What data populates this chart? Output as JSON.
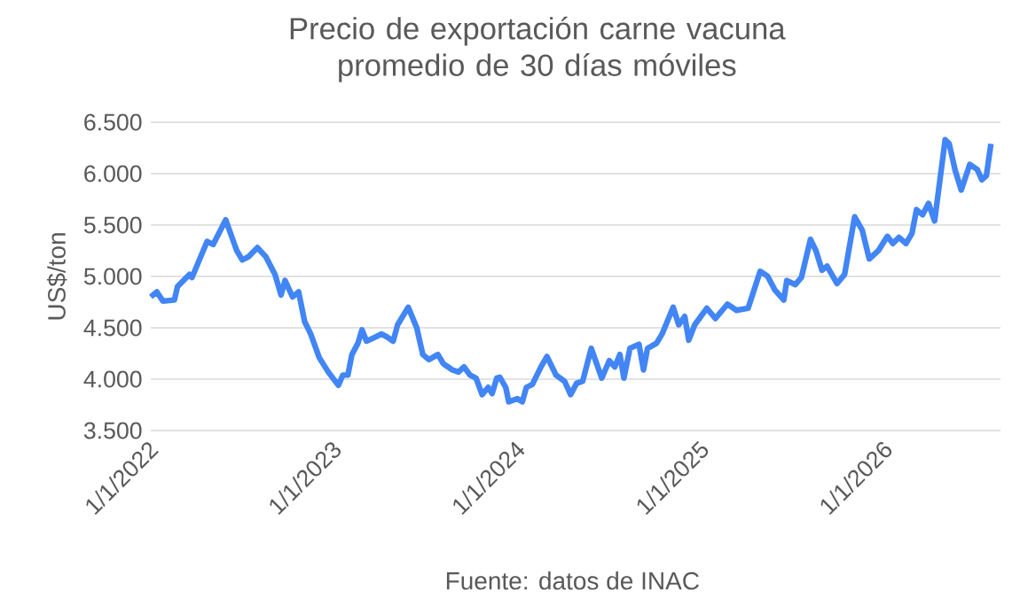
{
  "chart_data": {
    "type": "line",
    "title": "Precio de exportación carne vacuna promedio de 30 días móviles",
    "ylabel": "US$/ton",
    "annotations": [
      "Fuente: datos de INAC"
    ],
    "x": [
      "2022-01-01",
      "2022-01-13",
      "2022-01-25",
      "2022-02-17",
      "2022-02-23",
      "2022-03-19",
      "2022-03-24",
      "2022-04-23",
      "2022-05-05",
      "2022-05-30",
      "2022-06-21",
      "2022-07-02",
      "2022-07-14",
      "2022-08-01",
      "2022-08-18",
      "2022-09-05",
      "2022-09-17",
      "2022-09-25",
      "2022-10-10",
      "2022-10-22",
      "2022-11-03",
      "2022-11-15",
      "2022-12-02",
      "2022-12-20",
      "2023-01-09",
      "2023-01-18",
      "2023-01-28",
      "2023-02-05",
      "2023-02-17",
      "2023-02-25",
      "2023-03-06",
      "2023-03-24",
      "2023-04-05",
      "2023-04-16",
      "2023-04-28",
      "2023-05-07",
      "2023-05-28",
      "2023-06-14",
      "2023-06-26",
      "2023-07-08",
      "2023-07-26",
      "2023-08-06",
      "2023-08-24",
      "2023-09-05",
      "2023-09-16",
      "2023-09-28",
      "2023-10-10",
      "2023-10-22",
      "2023-11-03",
      "2023-11-11",
      "2023-11-20",
      "2023-11-26",
      "2023-12-08",
      "2023-12-14",
      "2023-12-31",
      "2024-01-10",
      "2024-01-18",
      "2024-01-30",
      "2024-02-16",
      "2024-02-28",
      "2024-03-17",
      "2024-04-03",
      "2024-04-15",
      "2024-04-27",
      "2024-05-09",
      "2024-05-26",
      "2024-06-16",
      "2024-07-01",
      "2024-07-12",
      "2024-07-22",
      "2024-07-30",
      "2024-08-11",
      "2024-08-29",
      "2024-09-07",
      "2024-09-15",
      "2024-10-03",
      "2024-10-14",
      "2024-11-05",
      "2024-11-16",
      "2024-11-28",
      "2024-12-06",
      "2024-12-18",
      "2025-01-11",
      "2025-01-28",
      "2025-02-21",
      "2025-03-11",
      "2025-04-03",
      "2025-04-27",
      "2025-05-12",
      "2025-05-26",
      "2025-06-13",
      "2025-06-19",
      "2025-07-06",
      "2025-07-18",
      "2025-08-05",
      "2025-08-16",
      "2025-08-28",
      "2025-09-07",
      "2025-09-27",
      "2025-10-12",
      "2025-11-01",
      "2025-11-16",
      "2025-11-30",
      "2025-12-18",
      "2026-01-05",
      "2026-01-16",
      "2026-01-28",
      "2026-02-11",
      "2026-02-23",
      "2026-03-04",
      "2026-03-16",
      "2026-03-28",
      "2026-04-09",
      "2026-04-30",
      "2026-05-08",
      "2026-05-20",
      "2026-06-01",
      "2026-06-18",
      "2026-07-03",
      "2026-07-12",
      "2026-07-21",
      "2026-07-30"
    ],
    "series": [
      {
        "color": "#4285f4",
        "values": [
          4800,
          4850,
          4760,
          4770,
          4900,
          5020,
          4990,
          5340,
          5310,
          5550,
          5250,
          5160,
          5190,
          5280,
          5190,
          5020,
          4820,
          4960,
          4800,
          4850,
          4560,
          4440,
          4210,
          4070,
          3940,
          4040,
          4040,
          4240,
          4350,
          4480,
          4370,
          4410,
          4440,
          4410,
          4370,
          4530,
          4700,
          4500,
          4240,
          4190,
          4240,
          4150,
          4090,
          4070,
          4120,
          4040,
          4010,
          3850,
          3920,
          3860,
          4010,
          4020,
          3920,
          3780,
          3810,
          3780,
          3920,
          3950,
          4120,
          4220,
          4040,
          3980,
          3850,
          3960,
          3980,
          4300,
          4010,
          4180,
          4120,
          4240,
          4010,
          4300,
          4340,
          4090,
          4300,
          4350,
          4440,
          4700,
          4530,
          4610,
          4380,
          4530,
          4690,
          4590,
          4730,
          4670,
          4690,
          5050,
          5000,
          4870,
          4770,
          4960,
          4920,
          4990,
          5360,
          5250,
          5060,
          5100,
          4930,
          5020,
          5580,
          5450,
          5170,
          5250,
          5390,
          5320,
          5380,
          5320,
          5420,
          5650,
          5600,
          5710,
          5540,
          6330,
          6290,
          6030,
          5840,
          6090,
          6040,
          5940,
          5980,
          6290
        ]
      }
    ],
    "xlim": [
      "2022-01-01",
      "2026-08-18"
    ],
    "xticks": [
      {
        "value": "2022-01-01",
        "label": "1/1/2022"
      },
      {
        "value": "2023-01-01",
        "label": "1/1/2023"
      },
      {
        "value": "2024-01-01",
        "label": "1/1/2024"
      },
      {
        "value": "2025-01-01",
        "label": "1/1/2025"
      },
      {
        "value": "2026-01-01",
        "label": "1/1/2026"
      }
    ],
    "ylim": [
      3500,
      6500
    ],
    "yticks": [
      {
        "value": 3500,
        "label": "3.500"
      },
      {
        "value": 4000,
        "label": "4.000"
      },
      {
        "value": 4500,
        "label": "4.500"
      },
      {
        "value": 5000,
        "label": "5.000"
      },
      {
        "value": 5500,
        "label": "5.500"
      },
      {
        "value": 6000,
        "label": "6.000"
      },
      {
        "value": 6500,
        "label": "6.500"
      }
    ],
    "grid": "y",
    "marker": "none",
    "line_style": "solid"
  }
}
